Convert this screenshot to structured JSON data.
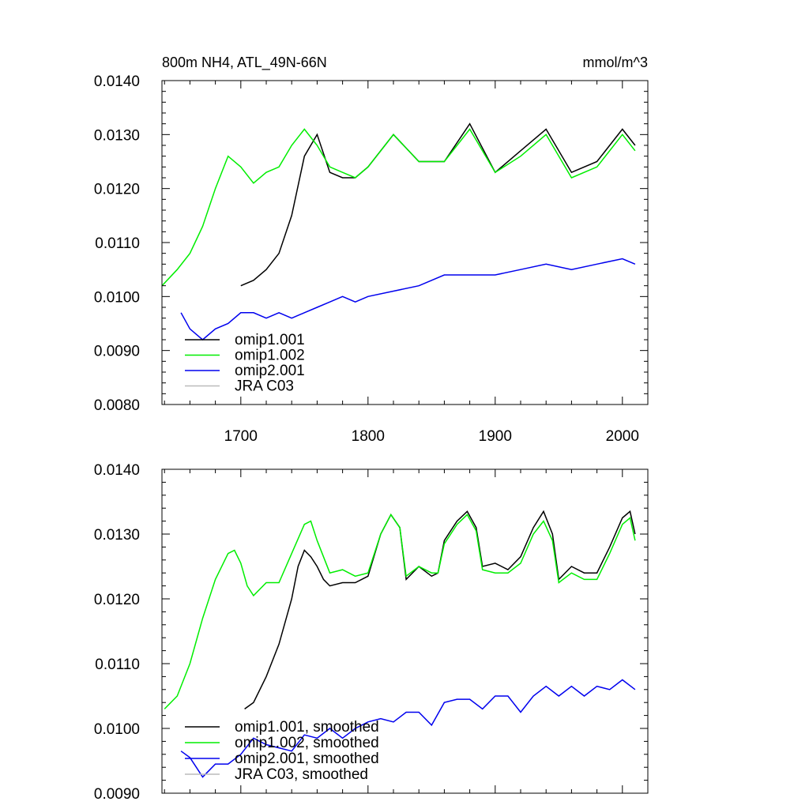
{
  "chart_data": [
    {
      "type": "line",
      "title": "800m NH4, ATL_49N-66N",
      "units": "mmol/m^3",
      "xlabel": "",
      "ylabel": "",
      "xlim": [
        1638,
        2020
      ],
      "ylim": [
        0.008,
        0.014
      ],
      "xticks": [
        1700,
        1800,
        1900,
        2000
      ],
      "xtick_labels": [
        "1700",
        "1800",
        "1900",
        "2000"
      ],
      "yticks": [
        0.008,
        0.009,
        0.01,
        0.011,
        0.012,
        0.013,
        0.014
      ],
      "ytick_labels": [
        "0.0080",
        "0.0090",
        "0.0100",
        "0.0110",
        "0.0120",
        "0.0130",
        "0.0140"
      ],
      "grid": false,
      "legend_position": "bottom-left",
      "series": [
        {
          "name": "omip1.001",
          "color": "#000000",
          "x": [
            1700,
            1710,
            1720,
            1730,
            1740,
            1750,
            1760,
            1770,
            1780,
            1790,
            1800,
            1820,
            1840,
            1860,
            1880,
            1900,
            1920,
            1940,
            1960,
            1980,
            2000,
            2010
          ],
          "y": [
            0.0102,
            0.0103,
            0.0105,
            0.0108,
            0.0115,
            0.0126,
            0.013,
            0.0123,
            0.0122,
            0.0122,
            0.0124,
            0.013,
            0.0125,
            0.0125,
            0.0132,
            0.0123,
            0.0127,
            0.0131,
            0.0123,
            0.0125,
            0.0131,
            0.0128
          ]
        },
        {
          "name": "omip1.002",
          "color": "#00ee00",
          "x": [
            1638,
            1650,
            1660,
            1670,
            1680,
            1690,
            1700,
            1710,
            1720,
            1730,
            1740,
            1750,
            1760,
            1770,
            1780,
            1790,
            1800,
            1820,
            1840,
            1860,
            1880,
            1900,
            1920,
            1940,
            1960,
            1980,
            2000,
            2010
          ],
          "y": [
            0.0102,
            0.0105,
            0.0108,
            0.0113,
            0.012,
            0.0126,
            0.0124,
            0.0121,
            0.0123,
            0.0124,
            0.0128,
            0.0131,
            0.0128,
            0.0124,
            0.0123,
            0.0122,
            0.0124,
            0.013,
            0.0125,
            0.0125,
            0.0131,
            0.0123,
            0.0126,
            0.013,
            0.0122,
            0.0124,
            0.013,
            0.0127
          ]
        },
        {
          "name": "omip2.001",
          "color": "#0000ee",
          "x": [
            1653,
            1660,
            1670,
            1680,
            1690,
            1700,
            1710,
            1720,
            1730,
            1740,
            1750,
            1760,
            1770,
            1780,
            1790,
            1800,
            1820,
            1840,
            1860,
            1880,
            1900,
            1920,
            1940,
            1960,
            1980,
            2000,
            2010
          ],
          "y": [
            0.0097,
            0.0094,
            0.0092,
            0.0094,
            0.0095,
            0.0097,
            0.0097,
            0.0096,
            0.0097,
            0.0096,
            0.0097,
            0.0098,
            0.0099,
            0.01,
            0.0099,
            0.01,
            0.0101,
            0.0102,
            0.0104,
            0.0104,
            0.0104,
            0.0105,
            0.0106,
            0.0105,
            0.0106,
            0.0107,
            0.0106
          ]
        },
        {
          "name": "JRA C03",
          "color": "#bbbbbb",
          "x": [],
          "y": []
        }
      ]
    },
    {
      "type": "line",
      "title": "",
      "xlabel": "",
      "ylabel": "",
      "xlim": [
        1638,
        2020
      ],
      "ylim": [
        0.009,
        0.014
      ],
      "xticks": [
        1700,
        1800,
        1900,
        2000
      ],
      "xtick_labels": [],
      "yticks": [
        0.009,
        0.01,
        0.011,
        0.012,
        0.013,
        0.014
      ],
      "ytick_labels": [
        "0.0090",
        "0.0100",
        "0.0110",
        "0.0120",
        "0.0130",
        "0.0140"
      ],
      "grid": false,
      "legend_position": "bottom-left",
      "series": [
        {
          "name": "omip1.001, smoothed",
          "color": "#000000",
          "x": [
            1703,
            1710,
            1720,
            1730,
            1740,
            1745,
            1750,
            1755,
            1760,
            1765,
            1770,
            1780,
            1790,
            1800,
            1810,
            1818,
            1825,
            1830,
            1840,
            1850,
            1855,
            1860,
            1870,
            1878,
            1885,
            1890,
            1900,
            1910,
            1920,
            1930,
            1938,
            1945,
            1950,
            1960,
            1970,
            1980,
            1990,
            2000,
            2006,
            2010
          ],
          "y": [
            0.0103,
            0.0104,
            0.0108,
            0.0113,
            0.012,
            0.0125,
            0.01275,
            0.01265,
            0.0125,
            0.0123,
            0.0122,
            0.01225,
            0.01225,
            0.01235,
            0.013,
            0.0133,
            0.0131,
            0.0123,
            0.0125,
            0.01235,
            0.0124,
            0.0129,
            0.0132,
            0.01335,
            0.0131,
            0.0125,
            0.01255,
            0.01245,
            0.01265,
            0.0131,
            0.01335,
            0.013,
            0.0123,
            0.0125,
            0.0124,
            0.0124,
            0.0128,
            0.01325,
            0.01335,
            0.013
          ]
        },
        {
          "name": "omip1.002, smoothed",
          "color": "#00ee00",
          "x": [
            1640,
            1650,
            1660,
            1670,
            1680,
            1690,
            1695,
            1700,
            1705,
            1710,
            1720,
            1730,
            1740,
            1750,
            1755,
            1760,
            1770,
            1780,
            1790,
            1800,
            1810,
            1818,
            1825,
            1830,
            1840,
            1850,
            1855,
            1860,
            1870,
            1878,
            1885,
            1890,
            1900,
            1910,
            1920,
            1930,
            1938,
            1945,
            1950,
            1960,
            1970,
            1980,
            1990,
            2000,
            2006,
            2010
          ],
          "y": [
            0.0103,
            0.0105,
            0.011,
            0.0117,
            0.0123,
            0.0127,
            0.01275,
            0.01255,
            0.0122,
            0.01205,
            0.01225,
            0.01225,
            0.0127,
            0.01315,
            0.0132,
            0.0129,
            0.0124,
            0.01245,
            0.01235,
            0.0124,
            0.013,
            0.0133,
            0.0131,
            0.01235,
            0.0125,
            0.0124,
            0.0124,
            0.01285,
            0.01315,
            0.0133,
            0.01305,
            0.01245,
            0.0124,
            0.0124,
            0.01255,
            0.013,
            0.0132,
            0.0129,
            0.01225,
            0.0124,
            0.0123,
            0.0123,
            0.0127,
            0.01315,
            0.01325,
            0.0129
          ]
        },
        {
          "name": "omip2.001, smoothed",
          "color": "#0000ee",
          "x": [
            1653,
            1660,
            1665,
            1670,
            1675,
            1680,
            1690,
            1700,
            1710,
            1720,
            1730,
            1740,
            1750,
            1760,
            1770,
            1780,
            1790,
            1800,
            1810,
            1820,
            1830,
            1840,
            1850,
            1860,
            1870,
            1880,
            1890,
            1900,
            1910,
            1920,
            1930,
            1940,
            1950,
            1960,
            1970,
            1980,
            1990,
            2000,
            2010
          ],
          "y": [
            0.00965,
            0.00955,
            0.0094,
            0.00925,
            0.00935,
            0.00945,
            0.00945,
            0.0096,
            0.00985,
            0.00975,
            0.0097,
            0.00965,
            0.0099,
            0.00985,
            0.01,
            0.00985,
            0.01,
            0.0101,
            0.01015,
            0.0101,
            0.01025,
            0.01025,
            0.01005,
            0.0104,
            0.01045,
            0.01045,
            0.0103,
            0.0105,
            0.0105,
            0.01025,
            0.0105,
            0.01065,
            0.0105,
            0.01065,
            0.0105,
            0.01065,
            0.0106,
            0.01075,
            0.0106
          ]
        },
        {
          "name": "JRA C03, smoothed",
          "color": "#bbbbbb",
          "x": [],
          "y": []
        }
      ]
    }
  ]
}
